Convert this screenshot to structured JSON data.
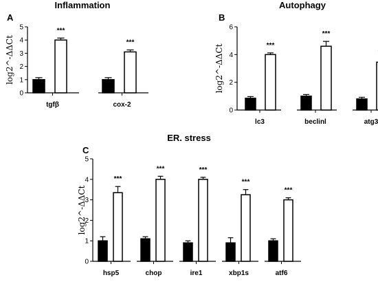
{
  "colors": {
    "control": "#000000",
    "treated": "#ffffff",
    "stroke": "#000000"
  },
  "chart_data": [
    {
      "panel": "A",
      "type": "bar",
      "title": "Inflammation",
      "ylabel": "log2^-ΔΔCt",
      "ylim": [
        0,
        5
      ],
      "yticks": [
        "0",
        "1",
        "2",
        "3",
        "4",
        "5"
      ],
      "categories": [
        "tgfβ",
        "cox-2"
      ],
      "series": [
        {
          "values": [
            1.0,
            1.0
          ],
          "errors": [
            0.15,
            0.15
          ]
        },
        {
          "values": [
            4.0,
            3.1
          ],
          "errors": [
            0.15,
            0.15
          ]
        }
      ],
      "annotations": [
        "***",
        "***"
      ]
    },
    {
      "panel": "B",
      "type": "bar",
      "title": "Autophagy",
      "ylabel": "log2^-ΔΔCt",
      "ylim": [
        0,
        6
      ],
      "yticks": [
        "0",
        "2",
        "4",
        "6"
      ],
      "categories": [
        "lc3",
        "beclinl",
        "atg3"
      ],
      "series": [
        {
          "values": [
            0.85,
            1.0,
            0.8
          ],
          "errors": [
            0.12,
            0.12,
            0.12
          ]
        },
        {
          "values": [
            4.0,
            4.6,
            3.45
          ],
          "errors": [
            0.12,
            0.35,
            0.15
          ]
        }
      ],
      "annotations": [
        "***",
        "***",
        "***"
      ]
    },
    {
      "panel": "C",
      "type": "bar",
      "title": "ER. stress",
      "ylabel": "log2^-ΔΔCt",
      "ylim": [
        0,
        5
      ],
      "yticks": [
        "0",
        "1",
        "2",
        "3",
        "4",
        "5"
      ],
      "categories": [
        "hsp5",
        "chop",
        "ire1",
        "xbp1s",
        "atf6"
      ],
      "series": [
        {
          "values": [
            1.0,
            1.1,
            0.9,
            0.9,
            1.0
          ],
          "errors": [
            0.2,
            0.1,
            0.1,
            0.25,
            0.1
          ]
        },
        {
          "values": [
            3.35,
            4.0,
            4.0,
            3.25,
            3.0
          ],
          "errors": [
            0.3,
            0.15,
            0.1,
            0.25,
            0.1
          ]
        }
      ],
      "annotations": [
        "***",
        "***",
        "***",
        "***",
        "***"
      ]
    }
  ]
}
